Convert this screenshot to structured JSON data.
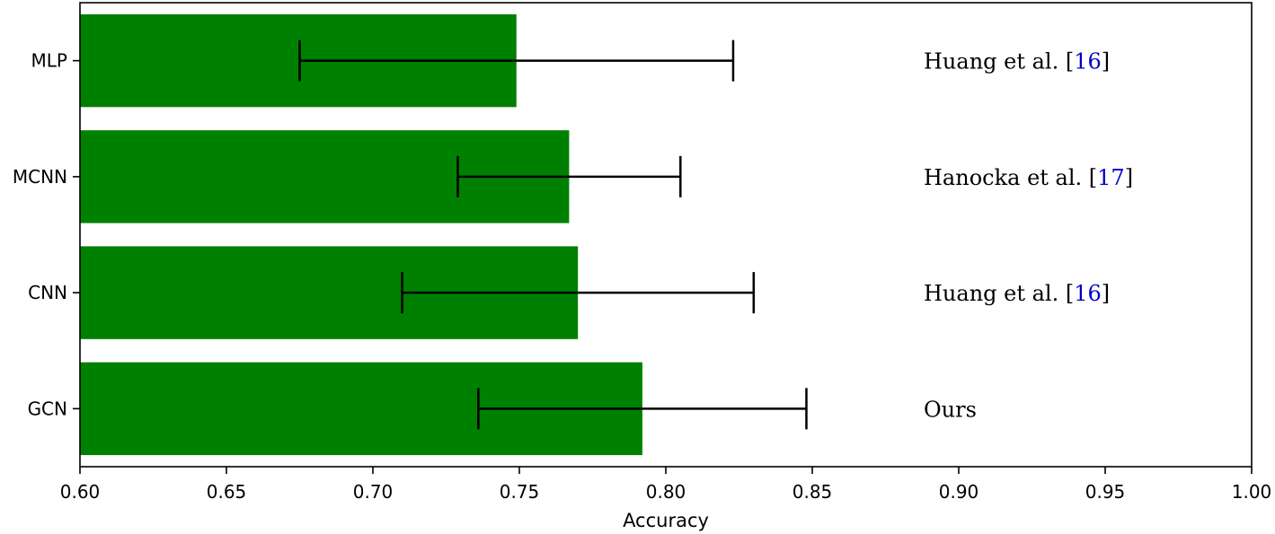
{
  "chart_data": {
    "type": "bar",
    "orientation": "horizontal",
    "title": "",
    "xlabel": "Accuracy",
    "ylabel": "",
    "xlim": [
      0.6,
      1.0
    ],
    "x_ticks": [
      0.6,
      0.65,
      0.7,
      0.75,
      0.8,
      0.85,
      0.9,
      0.95,
      1.0
    ],
    "x_tick_labels": [
      "0.60",
      "0.65",
      "0.70",
      "0.75",
      "0.80",
      "0.85",
      "0.90",
      "0.95",
      "1.00"
    ],
    "grid": false,
    "bar_color": "#008000",
    "errorbar_color": "#000000",
    "categories": [
      "MLP",
      "MCNN",
      "CNN",
      "GCN"
    ],
    "values": [
      0.749,
      0.767,
      0.77,
      0.792
    ],
    "error_low": [
      0.675,
      0.729,
      0.71,
      0.736
    ],
    "error_high": [
      0.823,
      0.805,
      0.83,
      0.848
    ],
    "annotations": [
      {
        "category": "MLP",
        "text": "Huang et al. [",
        "ref": "16",
        "close": "]"
      },
      {
        "category": "MCNN",
        "text": "Hanocka et al. [",
        "ref": "17",
        "close": "]"
      },
      {
        "category": "CNN",
        "text": "Huang et al. [",
        "ref": "16",
        "close": "]"
      },
      {
        "category": "GCN",
        "text": "Ours",
        "ref": "",
        "close": ""
      }
    ],
    "annotation_ref_color": "#0000c8"
  }
}
